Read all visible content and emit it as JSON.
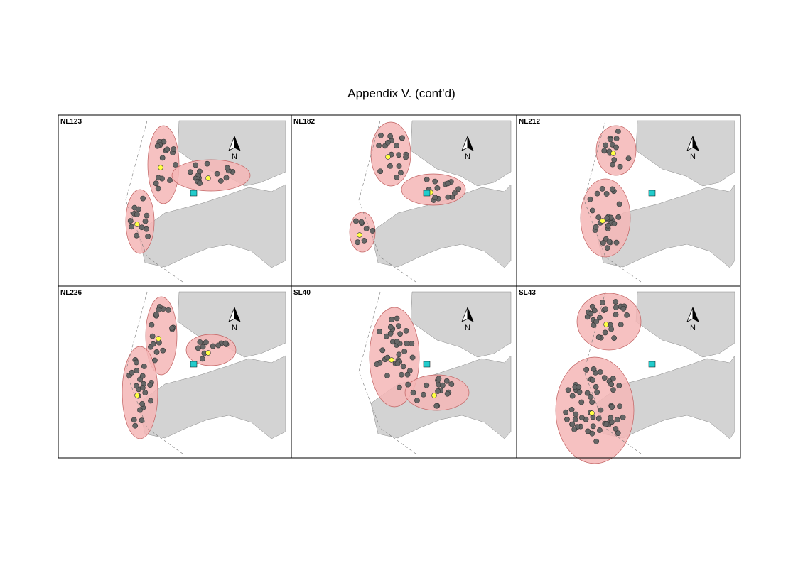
{
  "header": {
    "title": "Appendix V.  (cont’d)"
  },
  "panels": [
    {
      "label": "NL123",
      "north": "N"
    },
    {
      "label": "NL182",
      "north": "N"
    },
    {
      "label": "NL212",
      "north": "N"
    },
    {
      "label": "NL226",
      "north": "N"
    },
    {
      "label": "SL40",
      "north": "N"
    },
    {
      "label": "SL43",
      "north": "N"
    }
  ]
}
